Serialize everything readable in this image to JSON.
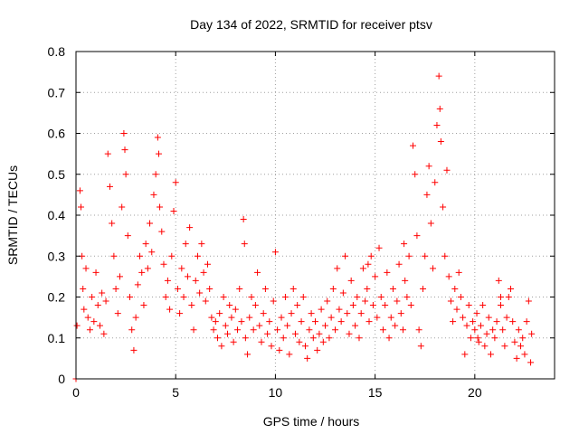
{
  "chart_data": {
    "type": "scatter",
    "title": "Day 134 of 2022, SRMTID for receiver ptsv",
    "xlabel": "GPS time / hours",
    "ylabel": "SRMTID / TECUs",
    "xlim": [
      0,
      24
    ],
    "ylim": [
      0,
      0.8
    ],
    "x_ticks": [
      0,
      5,
      10,
      15,
      20
    ],
    "x_tick_labels": [
      "0",
      "5",
      "10",
      "15",
      "20"
    ],
    "y_ticks": [
      0,
      0.1,
      0.2,
      0.3,
      0.4,
      0.5,
      0.6,
      0.7,
      0.8
    ],
    "y_tick_labels": [
      "0",
      "0.1",
      "0.2",
      "0.3",
      "0.4",
      "0.5",
      "0.6",
      "0.7",
      "0.8"
    ],
    "grid": true,
    "marker": "+",
    "series": [
      {
        "name": "SRMTID",
        "color": "#ff0000",
        "points": [
          [
            0.0,
            0.0
          ],
          [
            0.05,
            0.13
          ],
          [
            0.2,
            0.46
          ],
          [
            0.25,
            0.42
          ],
          [
            0.3,
            0.3
          ],
          [
            0.35,
            0.22
          ],
          [
            0.4,
            0.17
          ],
          [
            0.5,
            0.27
          ],
          [
            0.6,
            0.15
          ],
          [
            0.7,
            0.12
          ],
          [
            0.8,
            0.2
          ],
          [
            0.9,
            0.14
          ],
          [
            1.0,
            0.26
          ],
          [
            1.1,
            0.18
          ],
          [
            1.2,
            0.13
          ],
          [
            1.3,
            0.21
          ],
          [
            1.4,
            0.11
          ],
          [
            1.5,
            0.19
          ],
          [
            1.6,
            0.55
          ],
          [
            1.7,
            0.47
          ],
          [
            1.8,
            0.38
          ],
          [
            1.9,
            0.3
          ],
          [
            2.0,
            0.22
          ],
          [
            2.1,
            0.16
          ],
          [
            2.2,
            0.25
          ],
          [
            2.3,
            0.42
          ],
          [
            2.4,
            0.6
          ],
          [
            2.45,
            0.56
          ],
          [
            2.5,
            0.5
          ],
          [
            2.6,
            0.35
          ],
          [
            2.7,
            0.2
          ],
          [
            2.8,
            0.12
          ],
          [
            2.9,
            0.07
          ],
          [
            3.0,
            0.15
          ],
          [
            3.1,
            0.23
          ],
          [
            3.2,
            0.3
          ],
          [
            3.3,
            0.26
          ],
          [
            3.4,
            0.18
          ],
          [
            3.5,
            0.33
          ],
          [
            3.6,
            0.27
          ],
          [
            3.7,
            0.38
          ],
          [
            3.8,
            0.31
          ],
          [
            3.9,
            0.45
          ],
          [
            4.0,
            0.5
          ],
          [
            4.1,
            0.59
          ],
          [
            4.15,
            0.55
          ],
          [
            4.2,
            0.42
          ],
          [
            4.3,
            0.36
          ],
          [
            4.4,
            0.28
          ],
          [
            4.5,
            0.2
          ],
          [
            4.6,
            0.24
          ],
          [
            4.7,
            0.17
          ],
          [
            4.8,
            0.3
          ],
          [
            4.9,
            0.41
          ],
          [
            5.0,
            0.48
          ],
          [
            5.1,
            0.22
          ],
          [
            5.2,
            0.16
          ],
          [
            5.3,
            0.27
          ],
          [
            5.4,
            0.2
          ],
          [
            5.5,
            0.33
          ],
          [
            5.6,
            0.25
          ],
          [
            5.7,
            0.37
          ],
          [
            5.8,
            0.18
          ],
          [
            5.9,
            0.12
          ],
          [
            6.0,
            0.24
          ],
          [
            6.1,
            0.3
          ],
          [
            6.2,
            0.21
          ],
          [
            6.3,
            0.33
          ],
          [
            6.4,
            0.26
          ],
          [
            6.5,
            0.19
          ],
          [
            6.6,
            0.28
          ],
          [
            6.7,
            0.22
          ],
          [
            6.8,
            0.15
          ],
          [
            6.9,
            0.12
          ],
          [
            7.0,
            0.14
          ],
          [
            7.1,
            0.1
          ],
          [
            7.2,
            0.16
          ],
          [
            7.3,
            0.08
          ],
          [
            7.4,
            0.2
          ],
          [
            7.5,
            0.13
          ],
          [
            7.6,
            0.11
          ],
          [
            7.7,
            0.18
          ],
          [
            7.8,
            0.15
          ],
          [
            7.9,
            0.09
          ],
          [
            8.0,
            0.17
          ],
          [
            8.1,
            0.12
          ],
          [
            8.2,
            0.22
          ],
          [
            8.3,
            0.14
          ],
          [
            8.4,
            0.39
          ],
          [
            8.45,
            0.33
          ],
          [
            8.5,
            0.1
          ],
          [
            8.6,
            0.06
          ],
          [
            8.7,
            0.15
          ],
          [
            8.8,
            0.2
          ],
          [
            8.9,
            0.12
          ],
          [
            9.0,
            0.18
          ],
          [
            9.1,
            0.26
          ],
          [
            9.2,
            0.13
          ],
          [
            9.3,
            0.09
          ],
          [
            9.4,
            0.16
          ],
          [
            9.5,
            0.22
          ],
          [
            9.6,
            0.11
          ],
          [
            9.7,
            0.14
          ],
          [
            9.8,
            0.08
          ],
          [
            9.9,
            0.19
          ],
          [
            10.0,
            0.31
          ],
          [
            10.1,
            0.12
          ],
          [
            10.2,
            0.07
          ],
          [
            10.3,
            0.15
          ],
          [
            10.4,
            0.1
          ],
          [
            10.5,
            0.2
          ],
          [
            10.6,
            0.13
          ],
          [
            10.7,
            0.06
          ],
          [
            10.8,
            0.16
          ],
          [
            10.9,
            0.22
          ],
          [
            11.0,
            0.11
          ],
          [
            11.1,
            0.18
          ],
          [
            11.2,
            0.09
          ],
          [
            11.3,
            0.14
          ],
          [
            11.4,
            0.2
          ],
          [
            11.5,
            0.08
          ],
          [
            11.6,
            0.05
          ],
          [
            11.7,
            0.12
          ],
          [
            11.8,
            0.16
          ],
          [
            11.9,
            0.1
          ],
          [
            12.0,
            0.14
          ],
          [
            12.1,
            0.07
          ],
          [
            12.2,
            0.11
          ],
          [
            12.3,
            0.17
          ],
          [
            12.4,
            0.09
          ],
          [
            12.5,
            0.13
          ],
          [
            12.6,
            0.19
          ],
          [
            12.7,
            0.1
          ],
          [
            12.8,
            0.15
          ],
          [
            12.9,
            0.22
          ],
          [
            13.0,
            0.12
          ],
          [
            13.1,
            0.27
          ],
          [
            13.2,
            0.17
          ],
          [
            13.3,
            0.14
          ],
          [
            13.4,
            0.21
          ],
          [
            13.5,
            0.3
          ],
          [
            13.6,
            0.16
          ],
          [
            13.7,
            0.11
          ],
          [
            13.8,
            0.24
          ],
          [
            13.9,
            0.18
          ],
          [
            14.0,
            0.13
          ],
          [
            14.1,
            0.2
          ],
          [
            14.2,
            0.1
          ],
          [
            14.3,
            0.16
          ],
          [
            14.4,
            0.27
          ],
          [
            14.5,
            0.19
          ],
          [
            14.6,
            0.22
          ],
          [
            14.7,
            0.14
          ],
          [
            14.8,
            0.3
          ],
          [
            14.9,
            0.18
          ],
          [
            15.0,
            0.25
          ],
          [
            15.1,
            0.15
          ],
          [
            15.2,
            0.32
          ],
          [
            15.3,
            0.2
          ],
          [
            15.4,
            0.12
          ],
          [
            15.5,
            0.18
          ],
          [
            15.6,
            0.26
          ],
          [
            15.7,
            0.1
          ],
          [
            15.8,
            0.15
          ],
          [
            15.9,
            0.22
          ],
          [
            16.0,
            0.13
          ],
          [
            16.1,
            0.19
          ],
          [
            16.2,
            0.28
          ],
          [
            16.3,
            0.16
          ],
          [
            16.4,
            0.12
          ],
          [
            16.5,
            0.24
          ],
          [
            16.6,
            0.2
          ],
          [
            16.7,
            0.3
          ],
          [
            16.8,
            0.18
          ],
          [
            16.9,
            0.57
          ],
          [
            17.0,
            0.5
          ],
          [
            17.1,
            0.35
          ],
          [
            17.2,
            0.12
          ],
          [
            17.3,
            0.08
          ],
          [
            17.4,
            0.22
          ],
          [
            17.5,
            0.3
          ],
          [
            17.6,
            0.45
          ],
          [
            17.7,
            0.52
          ],
          [
            17.8,
            0.38
          ],
          [
            17.9,
            0.27
          ],
          [
            18.0,
            0.48
          ],
          [
            18.1,
            0.62
          ],
          [
            18.2,
            0.74
          ],
          [
            18.25,
            0.66
          ],
          [
            18.3,
            0.58
          ],
          [
            18.4,
            0.42
          ],
          [
            18.5,
            0.3
          ],
          [
            18.6,
            0.51
          ],
          [
            18.7,
            0.25
          ],
          [
            18.8,
            0.19
          ],
          [
            18.9,
            0.14
          ],
          [
            19.0,
            0.22
          ],
          [
            19.1,
            0.17
          ],
          [
            19.2,
            0.26
          ],
          [
            19.3,
            0.2
          ],
          [
            19.4,
            0.15
          ],
          [
            19.5,
            0.06
          ],
          [
            19.6,
            0.13
          ],
          [
            19.7,
            0.18
          ],
          [
            19.8,
            0.1
          ],
          [
            19.9,
            0.14
          ],
          [
            20.0,
            0.12
          ],
          [
            20.1,
            0.16
          ],
          [
            20.2,
            0.09
          ],
          [
            20.3,
            0.13
          ],
          [
            20.4,
            0.18
          ],
          [
            20.5,
            0.08
          ],
          [
            20.6,
            0.11
          ],
          [
            20.7,
            0.15
          ],
          [
            20.8,
            0.06
          ],
          [
            20.9,
            0.12
          ],
          [
            21.0,
            0.1
          ],
          [
            21.1,
            0.14
          ],
          [
            21.2,
            0.24
          ],
          [
            21.3,
            0.18
          ],
          [
            21.4,
            0.12
          ],
          [
            21.5,
            0.08
          ],
          [
            21.6,
            0.15
          ],
          [
            21.7,
            0.2
          ],
          [
            21.8,
            0.22
          ],
          [
            21.9,
            0.14
          ],
          [
            22.0,
            0.09
          ],
          [
            22.1,
            0.05
          ],
          [
            22.2,
            0.12
          ],
          [
            22.3,
            0.08
          ],
          [
            22.4,
            0.1
          ],
          [
            22.5,
            0.06
          ],
          [
            22.6,
            0.14
          ],
          [
            22.7,
            0.19
          ],
          [
            22.8,
            0.04
          ],
          [
            22.85,
            0.11
          ],
          [
            21.3,
            0.2
          ],
          [
            20.15,
            0.1
          ],
          [
            14.65,
            0.28
          ],
          [
            16.45,
            0.33
          ]
        ]
      }
    ]
  }
}
